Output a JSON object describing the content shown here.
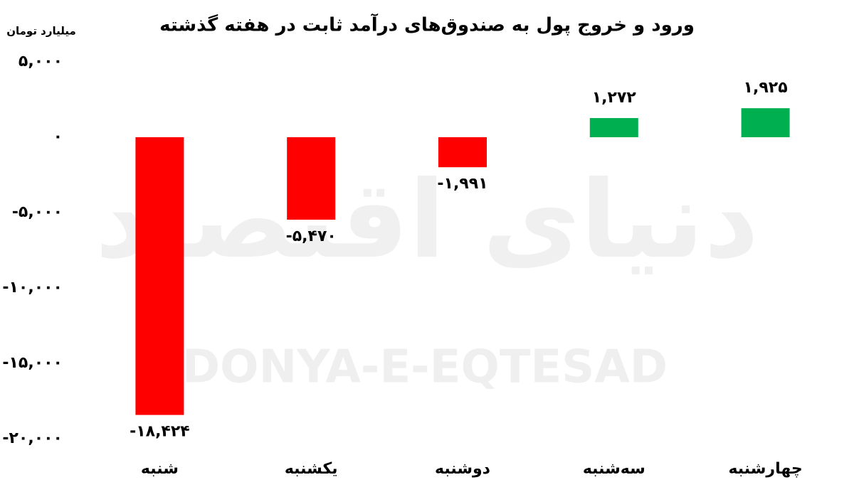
{
  "chart_data": {
    "type": "bar",
    "title": "ورود و خروج پول به صندوق‌های درآمد ثابت در هفته گذشته",
    "y_label": "میلیارد تومان",
    "watermark": "DONYA-E-EQTESAD",
    "watermark_fa": "دنیای اقتصاد",
    "categories": [
      "شنبه",
      "یکشنبه",
      "دوشنبه",
      "سه‌شنبه",
      "چهارشنبه"
    ],
    "values": [
      -18424,
      -5470,
      -1991,
      1272,
      1925
    ],
    "value_labels": [
      "-۱۸,۴۲۴",
      "-۵,۴۷۰",
      "-۱,۹۹۱",
      "۱,۲۷۲",
      "۱,۹۲۵"
    ],
    "colors": [
      "#ff0000",
      "#ff0000",
      "#ff0000",
      "#00b050",
      "#00b050"
    ],
    "ylim": [
      -20000,
      5000
    ],
    "yticks": [
      {
        "value": 5000,
        "label": "۵,۰۰۰"
      },
      {
        "value": 0,
        "label": "۰"
      },
      {
        "value": -5000,
        "label": "-۵,۰۰۰"
      },
      {
        "value": -10000,
        "label": "-۱۰,۰۰۰"
      },
      {
        "value": -15000,
        "label": "-۱۵,۰۰۰"
      },
      {
        "value": -20000,
        "label": "-۲۰,۰۰۰"
      }
    ],
    "grid": false
  }
}
